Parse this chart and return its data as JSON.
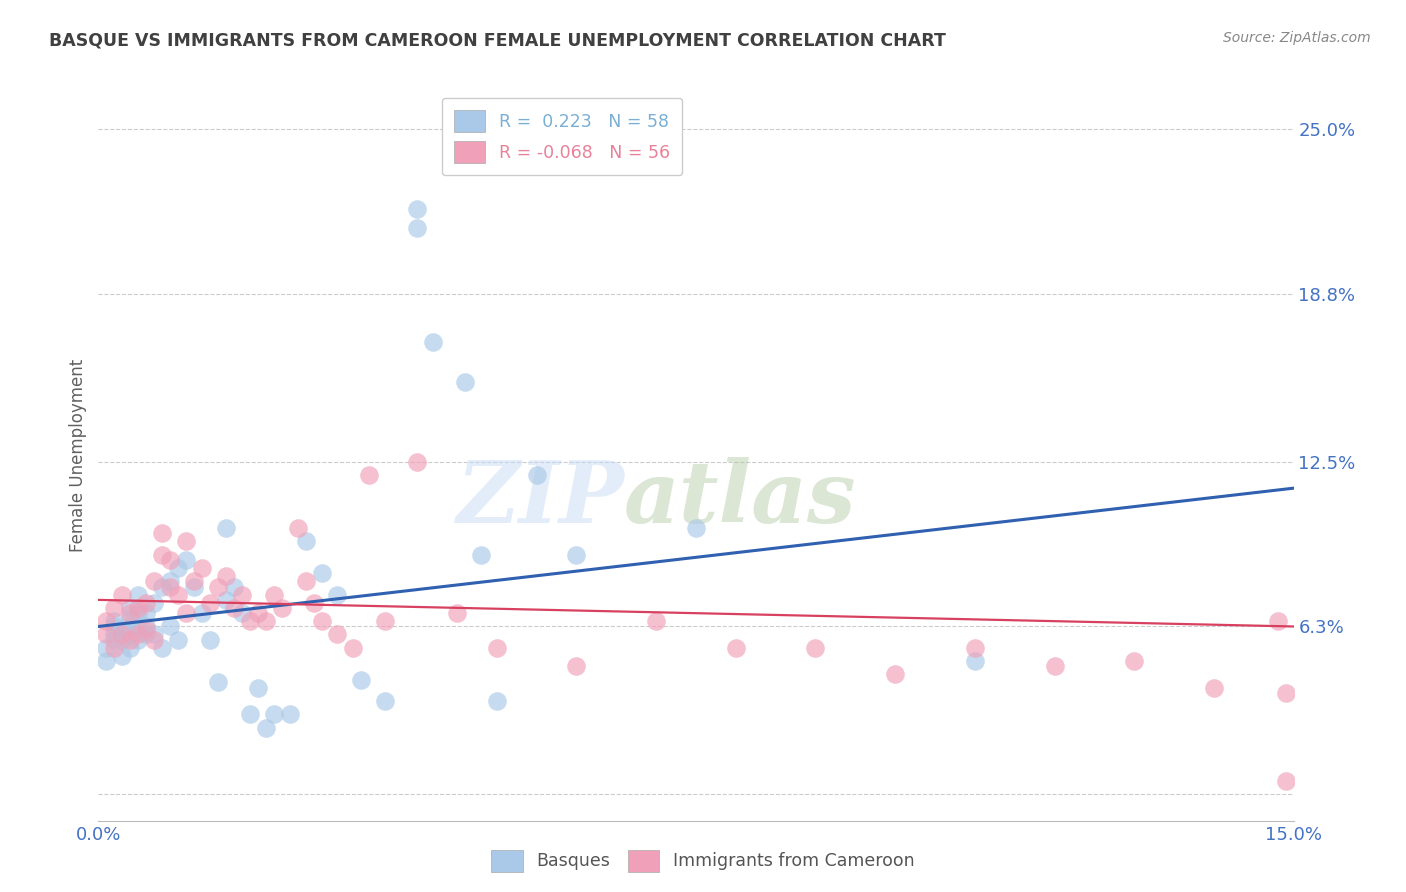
{
  "title": "BASQUE VS IMMIGRANTS FROM CAMEROON FEMALE UNEMPLOYMENT CORRELATION CHART",
  "source": "Source: ZipAtlas.com",
  "ylabel": "Female Unemployment",
  "xlim": [
    0.0,
    0.15
  ],
  "ylim": [
    -0.01,
    0.265
  ],
  "plot_ylim": [
    0.0,
    0.25
  ],
  "yticks": [
    0.0,
    0.063,
    0.125,
    0.188,
    0.25
  ],
  "ytick_labels": [
    "",
    "6.3%",
    "12.5%",
    "18.8%",
    "25.0%"
  ],
  "xticks": [
    0.0,
    0.025,
    0.05,
    0.075,
    0.1,
    0.125,
    0.15
  ],
  "xtick_labels": [
    "0.0%",
    "",
    "",
    "",
    "",
    "",
    "15.0%"
  ],
  "legend_entries": [
    {
      "label": "R =  0.223   N = 58",
      "color": "#7bafd4"
    },
    {
      "label": "R = -0.068   N = 56",
      "color": "#e8819a"
    }
  ],
  "group1_label": "Basques",
  "group2_label": "Immigrants from Cameroon",
  "group1_color": "#aac8e8",
  "group2_color": "#f0a0b8",
  "group1_line_color": "#3060b0",
  "group2_line_color": "#d84060",
  "watermark_zip": "ZIP",
  "watermark_atlas": "atlas",
  "background_color": "#ffffff",
  "grid_color": "#cccccc",
  "title_color": "#404040",
  "axis_label_color": "#606060",
  "right_tick_color": "#4472c4",
  "blue_line_x0": 0.0,
  "blue_line_y0": 0.063,
  "blue_line_x1": 0.15,
  "blue_line_y1": 0.115,
  "pink_line_x0": 0.0,
  "pink_line_y0": 0.073,
  "pink_line_x1": 0.15,
  "pink_line_y1": 0.063,
  "basque_x": [
    0.001,
    0.001,
    0.002,
    0.002,
    0.002,
    0.002,
    0.003,
    0.003,
    0.003,
    0.004,
    0.004,
    0.004,
    0.004,
    0.004,
    0.005,
    0.005,
    0.005,
    0.005,
    0.006,
    0.006,
    0.006,
    0.007,
    0.007,
    0.008,
    0.008,
    0.009,
    0.009,
    0.01,
    0.01,
    0.011,
    0.012,
    0.013,
    0.014,
    0.015,
    0.016,
    0.016,
    0.017,
    0.018,
    0.019,
    0.02,
    0.021,
    0.022,
    0.024,
    0.026,
    0.028,
    0.03,
    0.033,
    0.036,
    0.04,
    0.04,
    0.042,
    0.046,
    0.048,
    0.05,
    0.055,
    0.06,
    0.075,
    0.11
  ],
  "basque_y": [
    0.05,
    0.055,
    0.063,
    0.06,
    0.058,
    0.065,
    0.052,
    0.058,
    0.062,
    0.055,
    0.06,
    0.063,
    0.066,
    0.07,
    0.058,
    0.063,
    0.068,
    0.075,
    0.06,
    0.063,
    0.068,
    0.06,
    0.072,
    0.055,
    0.078,
    0.063,
    0.08,
    0.058,
    0.085,
    0.088,
    0.078,
    0.068,
    0.058,
    0.042,
    0.073,
    0.1,
    0.078,
    0.068,
    0.03,
    0.04,
    0.025,
    0.03,
    0.03,
    0.095,
    0.083,
    0.075,
    0.043,
    0.035,
    0.22,
    0.213,
    0.17,
    0.155,
    0.09,
    0.035,
    0.12,
    0.09,
    0.1,
    0.05
  ],
  "camr_x": [
    0.001,
    0.001,
    0.002,
    0.002,
    0.003,
    0.003,
    0.004,
    0.004,
    0.005,
    0.005,
    0.006,
    0.006,
    0.007,
    0.007,
    0.008,
    0.008,
    0.009,
    0.009,
    0.01,
    0.011,
    0.011,
    0.012,
    0.013,
    0.014,
    0.015,
    0.016,
    0.017,
    0.018,
    0.019,
    0.02,
    0.021,
    0.022,
    0.023,
    0.025,
    0.026,
    0.027,
    0.028,
    0.03,
    0.032,
    0.034,
    0.036,
    0.04,
    0.045,
    0.05,
    0.06,
    0.07,
    0.08,
    0.09,
    0.1,
    0.11,
    0.12,
    0.13,
    0.14,
    0.148,
    0.149,
    0.149
  ],
  "camr_y": [
    0.06,
    0.065,
    0.055,
    0.07,
    0.06,
    0.075,
    0.058,
    0.068,
    0.06,
    0.07,
    0.062,
    0.072,
    0.058,
    0.08,
    0.09,
    0.098,
    0.078,
    0.088,
    0.075,
    0.068,
    0.095,
    0.08,
    0.085,
    0.072,
    0.078,
    0.082,
    0.07,
    0.075,
    0.065,
    0.068,
    0.065,
    0.075,
    0.07,
    0.1,
    0.08,
    0.072,
    0.065,
    0.06,
    0.055,
    0.12,
    0.065,
    0.125,
    0.068,
    0.055,
    0.048,
    0.065,
    0.055,
    0.055,
    0.045,
    0.055,
    0.048,
    0.05,
    0.04,
    0.065,
    0.038,
    0.005
  ]
}
